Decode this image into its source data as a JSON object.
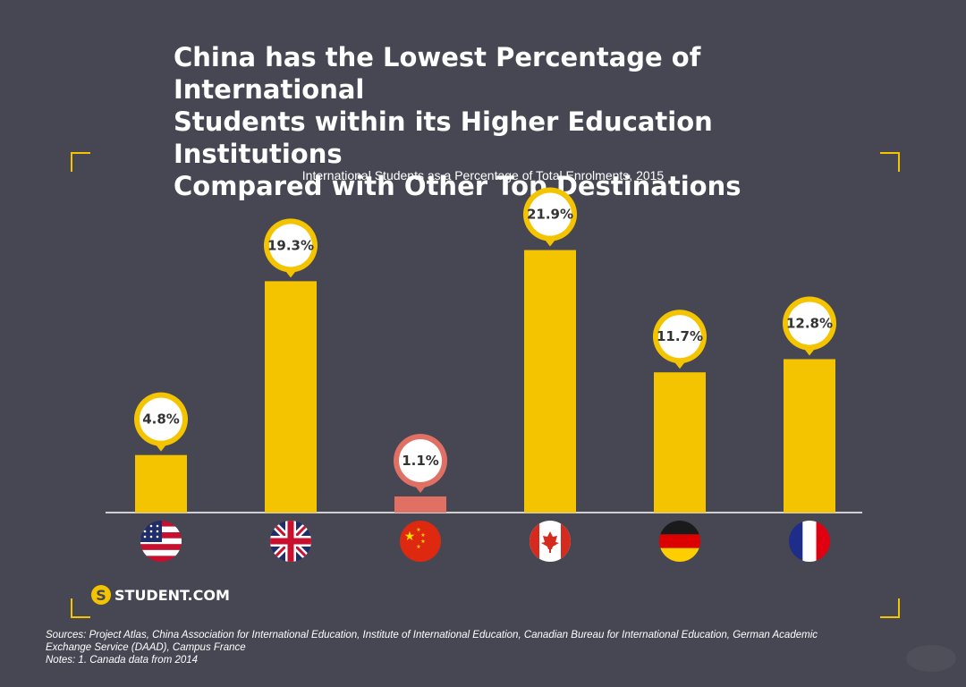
{
  "title": {
    "line1": "China has the Lowest Percentage of International",
    "line2": "Students within its Higher Education Institutions",
    "line3": "Compared with Other Top Destinations"
  },
  "colors": {
    "background": "#474754",
    "accent": "#f5c400",
    "highlight": "#e07063"
  },
  "chart_data": {
    "type": "bar",
    "title": "International Students as a Percentage of Total Enrolments, 2015",
    "categories": [
      "United States",
      "United Kingdom",
      "China",
      "Canada",
      "Germany",
      "France"
    ],
    "icons": [
      "us-flag-icon",
      "uk-flag-icon",
      "china-flag-icon",
      "canada-flag-icon",
      "germany-flag-icon",
      "france-flag-icon"
    ],
    "values": [
      4.8,
      19.3,
      1.1,
      21.9,
      11.7,
      12.8
    ],
    "labels": [
      "4.8%",
      "19.3%",
      "1.1%",
      "21.9%",
      "11.7%",
      "12.8%"
    ],
    "highlight": "China",
    "ylim": [
      0,
      25
    ],
    "xlabel": "",
    "ylabel": "",
    "grid": false
  },
  "brand": {
    "name": "STUDENT.COM",
    "mark": "S"
  },
  "footer": {
    "sources_line1": "Sources: Project Atlas, China Association for International Education, Institute of International Education, Canadian Bureau for International Education, German Academic",
    "sources_line2": "Exchange Service (DAAD), Campus France",
    "notes": "Notes: 1. Canada data from 2014"
  }
}
